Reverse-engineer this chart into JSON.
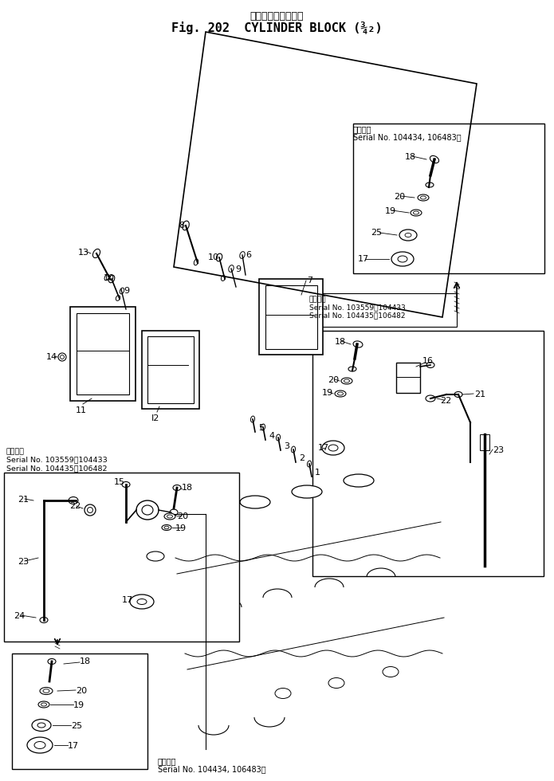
{
  "bg_color": "#ffffff",
  "lc": "#000000",
  "title_jp": "シリンダ　ブロック",
  "title_en": "Fig. 202  CYLINDER BLOCK (¾₂)",
  "serial_upper_right_1": "適用号機",
  "serial_upper_right_2": "Serial No. 104434, 106483～",
  "serial_mid_right_0": "適用号機",
  "serial_mid_right_1": "Serial No. 103559～104433",
  "serial_mid_right_2": "Serial No. 104435～106482",
  "serial_left_0": "適用号機",
  "serial_left_1": "Serial No. 103559～104433",
  "serial_left_2": "Serial No. 104435～106482",
  "serial_bottom_0": "適用号機",
  "serial_bottom_1": "Serial No. 104434, 106483～"
}
